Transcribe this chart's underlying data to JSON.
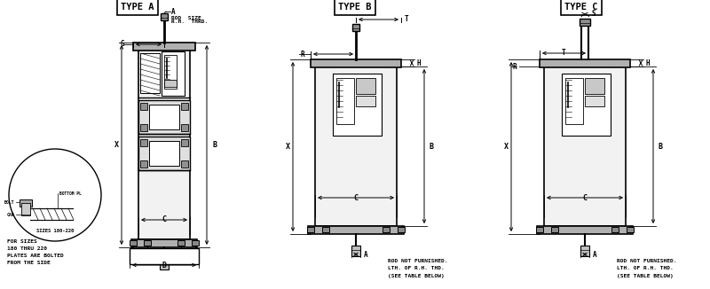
{
  "bg_color": "#ffffff",
  "lc": "#000000",
  "title_A": "TYPE A",
  "title_B": "TYPE B",
  "title_C": "TYPE C",
  "text_rodA": [
    "ROD  SIZE",
    "R.H.  THRD."
  ],
  "text_bottom_B": [
    "ROD NOT FURNISHED.",
    "LTH. OF R.H. THD.",
    "(SEE TABLE BELOW)"
  ],
  "text_bottom_C": [
    "ROD NOT FURNISHED.",
    "LTH. OF R.H. THD.",
    "(SEE TABLE BELOW)"
  ],
  "text_sizes": [
    "FOR SIZES",
    "180 THRU 220",
    "PLATES ARE BOLTED",
    "FROM THE SIDE"
  ],
  "circle_text": "SIZES 180-220"
}
